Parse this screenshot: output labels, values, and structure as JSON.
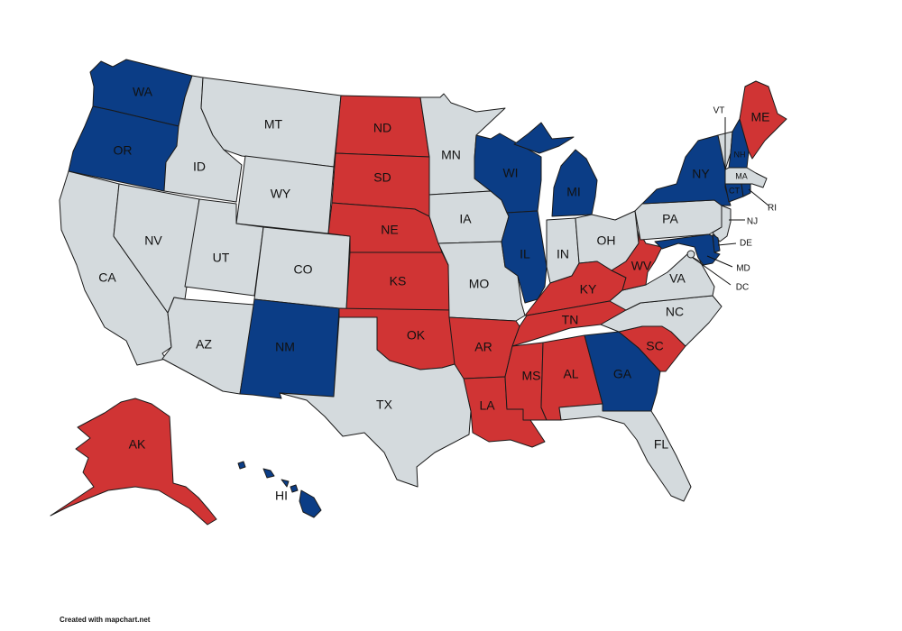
{
  "map": {
    "colors": {
      "blue": "#0b3d86",
      "red": "#d03434",
      "gray": "#d4dadd",
      "border": "#1a1a1a"
    },
    "states": [
      {
        "id": "WA",
        "color": "blue"
      },
      {
        "id": "OR",
        "color": "blue"
      },
      {
        "id": "CA",
        "color": "gray"
      },
      {
        "id": "ID",
        "color": "gray"
      },
      {
        "id": "NV",
        "color": "gray"
      },
      {
        "id": "MT",
        "color": "gray"
      },
      {
        "id": "WY",
        "color": "gray"
      },
      {
        "id": "UT",
        "color": "gray"
      },
      {
        "id": "AZ",
        "color": "gray"
      },
      {
        "id": "CO",
        "color": "gray"
      },
      {
        "id": "NM",
        "color": "blue"
      },
      {
        "id": "ND",
        "color": "red"
      },
      {
        "id": "SD",
        "color": "red"
      },
      {
        "id": "NE",
        "color": "red"
      },
      {
        "id": "KS",
        "color": "red"
      },
      {
        "id": "OK",
        "color": "red"
      },
      {
        "id": "TX",
        "color": "gray"
      },
      {
        "id": "MN",
        "color": "gray"
      },
      {
        "id": "IA",
        "color": "gray"
      },
      {
        "id": "MO",
        "color": "gray"
      },
      {
        "id": "AR",
        "color": "red"
      },
      {
        "id": "LA",
        "color": "red"
      },
      {
        "id": "WI",
        "color": "blue"
      },
      {
        "id": "IL",
        "color": "blue"
      },
      {
        "id": "MI",
        "color": "blue"
      },
      {
        "id": "IN",
        "color": "gray"
      },
      {
        "id": "OH",
        "color": "gray"
      },
      {
        "id": "KY",
        "color": "red"
      },
      {
        "id": "TN",
        "color": "red"
      },
      {
        "id": "MS",
        "color": "red"
      },
      {
        "id": "AL",
        "color": "red"
      },
      {
        "id": "GA",
        "color": "blue"
      },
      {
        "id": "FL",
        "color": "gray"
      },
      {
        "id": "SC",
        "color": "red"
      },
      {
        "id": "NC",
        "color": "gray"
      },
      {
        "id": "VA",
        "color": "gray"
      },
      {
        "id": "WV",
        "color": "red"
      },
      {
        "id": "PA",
        "color": "gray"
      },
      {
        "id": "NY",
        "color": "blue"
      },
      {
        "id": "VT",
        "color": "gray"
      },
      {
        "id": "NH",
        "color": "blue"
      },
      {
        "id": "ME",
        "color": "red"
      },
      {
        "id": "MA",
        "color": "gray"
      },
      {
        "id": "CT",
        "color": "blue"
      },
      {
        "id": "RI",
        "color": "blue"
      },
      {
        "id": "NJ",
        "color": "gray"
      },
      {
        "id": "DE",
        "color": "blue"
      },
      {
        "id": "MD",
        "color": "blue"
      },
      {
        "id": "DC",
        "color": "gray"
      },
      {
        "id": "AK",
        "color": "red"
      },
      {
        "id": "HI",
        "color": "blue"
      }
    ],
    "labels": {
      "WA": "WA",
      "OR": "OR",
      "CA": "CA",
      "ID": "ID",
      "NV": "NV",
      "MT": "MT",
      "WY": "WY",
      "UT": "UT",
      "AZ": "AZ",
      "CO": "CO",
      "NM": "NM",
      "ND": "ND",
      "SD": "SD",
      "NE": "NE",
      "KS": "KS",
      "OK": "OK",
      "TX": "TX",
      "MN": "MN",
      "IA": "IA",
      "MO": "MO",
      "AR": "AR",
      "LA": "LA",
      "WI": "WI",
      "IL": "IL",
      "MI": "MI",
      "IN": "IN",
      "OH": "OH",
      "KY": "KY",
      "TN": "TN",
      "MS": "MS",
      "AL": "AL",
      "GA": "GA",
      "FL": "FL",
      "SC": "SC",
      "NC": "NC",
      "VA": "VA",
      "WV": "WV",
      "PA": "PA",
      "NY": "NY",
      "VT": "VT",
      "NH": "NH",
      "ME": "ME",
      "MA": "MA",
      "CT": "CT",
      "RI": "RI",
      "NJ": "NJ",
      "DE": "DE",
      "MD": "MD",
      "DC": "DC",
      "AK": "AK",
      "HI": "HI"
    }
  },
  "credit": "Created with mapchart.net"
}
